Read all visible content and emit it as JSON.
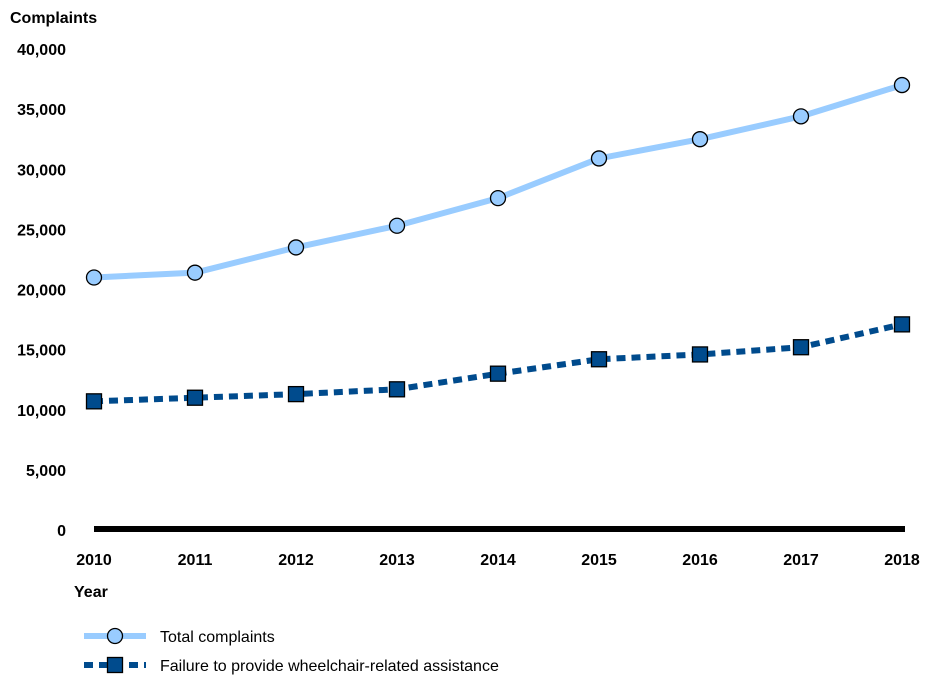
{
  "chart_data": {
    "type": "line",
    "ylabel": "Complaints",
    "xlabel": "Year",
    "ylim": [
      0,
      40000
    ],
    "yticks": [
      0,
      5000,
      10000,
      15000,
      20000,
      25000,
      30000,
      35000,
      40000
    ],
    "ytick_labels": [
      "0",
      "5,000",
      "10,000",
      "15,000",
      "20,000",
      "25,000",
      "30,000",
      "35,000",
      "40,000"
    ],
    "categories": [
      "2010",
      "2011",
      "2012",
      "2013",
      "2014",
      "2015",
      "2016",
      "2017",
      "2018"
    ],
    "grid": false,
    "legend_position": "bottom-left",
    "series": [
      {
        "name": "Total complaints",
        "values": [
          21000,
          21400,
          23500,
          25300,
          27600,
          30900,
          32500,
          34400,
          37000
        ],
        "color": "#99ccff",
        "line_style": "solid",
        "marker": "circle"
      },
      {
        "name": "Failure to provide wheelchair-related assistance",
        "values": [
          10700,
          11000,
          11300,
          11700,
          13000,
          14200,
          14600,
          15200,
          17100
        ],
        "color": "#004b8d",
        "line_style": "dotted",
        "marker": "square"
      }
    ]
  }
}
